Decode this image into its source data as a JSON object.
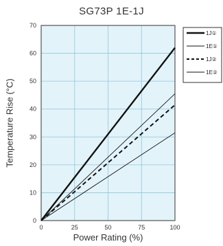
{
  "chart_data": {
    "type": "line",
    "title": "SG73P 1E-1J",
    "xlabel": "Power Rating (%)",
    "ylabel": "Temperature Rise (°C)",
    "xlim": [
      0,
      100
    ],
    "ylim": [
      0,
      70
    ],
    "xticks": [
      "0",
      "25",
      "50",
      "75",
      "100"
    ],
    "yticks": [
      "0",
      "10",
      "20",
      "30",
      "40",
      "50",
      "60",
      "70"
    ],
    "grid": true,
    "legend_position": "outside-right",
    "plot_background": "#e3f3fa",
    "grid_color": "#8fc6dd",
    "series": [
      {
        "name": "1J①",
        "x": [
          0,
          100
        ],
        "y": [
          0,
          62
        ],
        "style": "thick-solid",
        "color": "#111111"
      },
      {
        "name": "1E①",
        "x": [
          0,
          100
        ],
        "y": [
          0,
          45.5
        ],
        "style": "thin-solid",
        "color": "#111111"
      },
      {
        "name": "1J②",
        "x": [
          0,
          100
        ],
        "y": [
          0,
          41.5
        ],
        "style": "dashed",
        "color": "#111111"
      },
      {
        "name": "1E②",
        "x": [
          0,
          100
        ],
        "y": [
          0,
          31.5
        ],
        "style": "thin-solid",
        "color": "#111111"
      }
    ]
  }
}
